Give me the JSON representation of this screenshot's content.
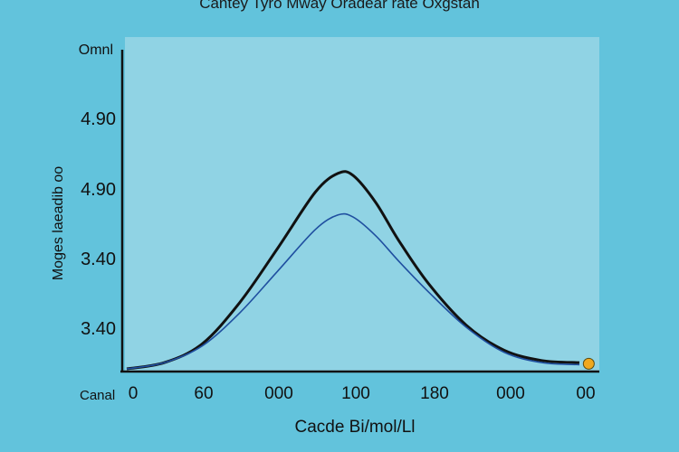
{
  "chart_data": {
    "type": "line",
    "title": "Cantey  Tyro Mway  Oradear rate Oxgstan",
    "xlabel": "Cacde Bi/mol/Ll",
    "ylabel": "Moges laeadib oo",
    "y_top_label": "Omnl",
    "x_corner_label": "Canal",
    "x_ticks": [
      "0",
      "60",
      "000",
      "100",
      "180",
      "000",
      "00"
    ],
    "y_ticks": [
      "4.90",
      "4.90",
      "3.40",
      "3.40"
    ],
    "xlim": [
      0,
      6
    ],
    "ylim": [
      0,
      1
    ],
    "grid": false,
    "legend": "none",
    "series": [
      {
        "color": "#111111",
        "x": [
          0,
          0.5,
          1,
          1.5,
          2,
          2.5,
          2.8,
          3,
          3.3,
          3.6,
          4,
          4.5,
          5,
          5.5,
          6
        ],
        "y": [
          0,
          0.03,
          0.12,
          0.32,
          0.58,
          0.85,
          0.94,
          0.93,
          0.8,
          0.62,
          0.41,
          0.21,
          0.09,
          0.04,
          0.03
        ]
      },
      {
        "color": "#1f4fa0",
        "x": [
          0,
          0.5,
          1,
          1.5,
          2,
          2.5,
          2.8,
          3,
          3.3,
          3.6,
          4,
          4.5,
          5,
          5.5,
          6
        ],
        "y": [
          0,
          0.03,
          0.11,
          0.27,
          0.47,
          0.67,
          0.74,
          0.73,
          0.64,
          0.52,
          0.37,
          0.2,
          0.08,
          0.03,
          0.02
        ]
      }
    ],
    "marker": {
      "x": 6.1,
      "y": 0.02,
      "color": "#f0a81e"
    },
    "colors": {
      "background": "#62c3dc",
      "plot_area": "#90d3e4",
      "axis": "#111111"
    }
  }
}
